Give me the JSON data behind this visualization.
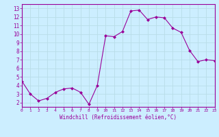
{
  "x": [
    0,
    1,
    2,
    3,
    4,
    5,
    6,
    7,
    8,
    9,
    10,
    11,
    12,
    13,
    14,
    15,
    16,
    17,
    18,
    19,
    20,
    21,
    22,
    23
  ],
  "y": [
    4.5,
    3.0,
    2.2,
    2.5,
    3.2,
    3.6,
    3.7,
    3.2,
    1.8,
    4.0,
    9.8,
    9.7,
    10.3,
    12.7,
    12.8,
    11.7,
    12.0,
    11.9,
    10.7,
    10.2,
    8.1,
    6.8,
    7.0,
    6.9
  ],
  "line_color": "#990099",
  "marker": "D",
  "marker_size": 2.0,
  "background_color": "#cceeff",
  "grid_color": "#aaddee",
  "xlabel": "Windchill (Refroidissement éolien,°C)",
  "xlabel_color": "#990099",
  "xlim": [
    0,
    23
  ],
  "ylim": [
    1.5,
    13.5
  ],
  "yticks": [
    2,
    3,
    4,
    5,
    6,
    7,
    8,
    9,
    10,
    11,
    12,
    13
  ],
  "xticks": [
    0,
    1,
    2,
    3,
    4,
    5,
    6,
    7,
    8,
    9,
    10,
    11,
    12,
    13,
    14,
    15,
    16,
    17,
    18,
    19,
    20,
    21,
    22,
    23
  ],
  "tick_color": "#990099",
  "spine_color": "#990099",
  "font_family": "monospace"
}
